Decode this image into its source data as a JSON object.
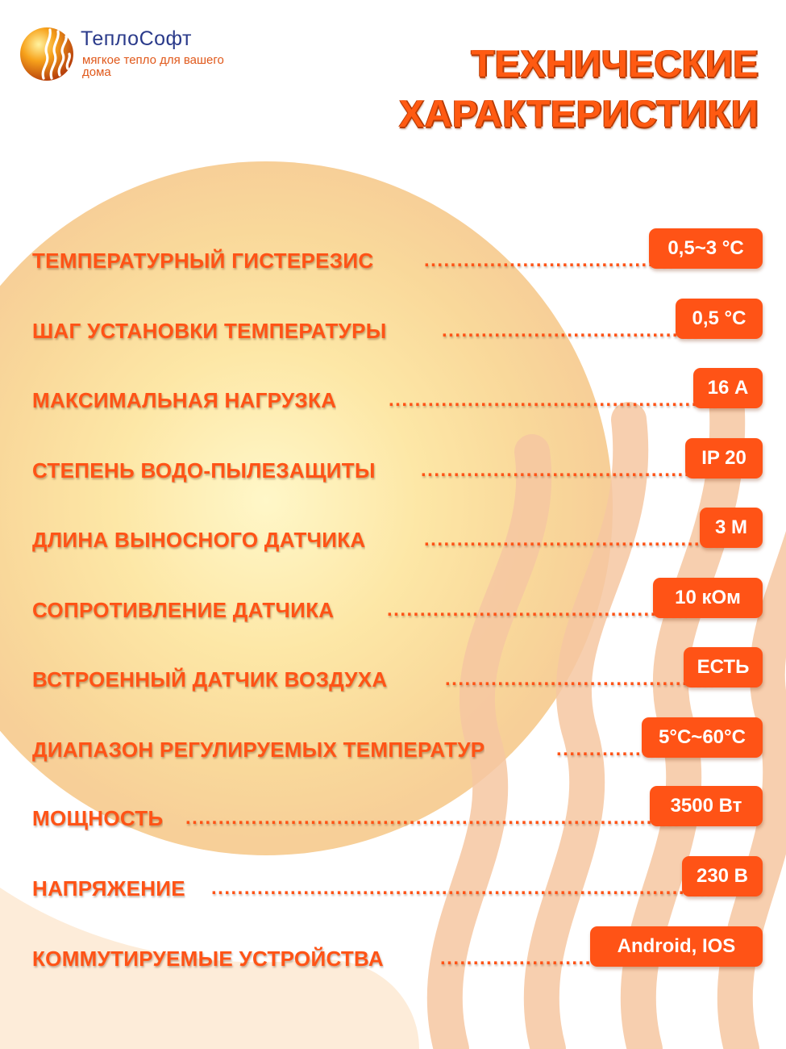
{
  "brand": {
    "name": "ТеплоСофт",
    "tagline": "мягкое тепло для вашего дома",
    "logo_icon": "sun-waves-logo"
  },
  "title": "ТЕХНИЧЕСКИЕ\nХАРАКТЕРИСТИКИ",
  "colors": {
    "accent": "#ff5316",
    "title_shadow": "#b53a05",
    "brand_blue": "#2a3a8a",
    "background_glow": "#fbd77a"
  },
  "specs": [
    {
      "label": "ТЕМПЕРАТУРНЫЙ ГИСТЕРЕЗИС",
      "value": "0,5~3 °С"
    },
    {
      "label": "ШАГ УСТАНОВКИ ТЕМПЕРАТУРЫ",
      "value": "0,5 °С"
    },
    {
      "label": "МАКСИМАЛЬНАЯ НАГРУЗКА",
      "value": "16 А"
    },
    {
      "label": "СТЕПЕНЬ ВОДО-ПЫЛЕЗАЩИТЫ",
      "value": "IP 20"
    },
    {
      "label": "ДЛИНА ВЫНОСНОГО ДАТЧИКА",
      "value": "3 М"
    },
    {
      "label": "СОПРОТИВЛЕНИЕ ДАТЧИКА",
      "value": "10 кОм"
    },
    {
      "label": "ВСТРОЕННЫЙ ДАТЧИК ВОЗДУХА",
      "value": "ЕСТЬ"
    },
    {
      "label": "ДИАПАЗОН РЕГУЛИРУЕМЫХ ТЕМПЕРАТУР",
      "value": "5°С~60°С"
    },
    {
      "label": "МОЩНОСТЬ",
      "value": "3500 Вт"
    },
    {
      "label": "НАПРЯЖЕНИЕ",
      "value": "230 В"
    },
    {
      "label": "КОММУТИРУЕМЫЕ УСТРОЙСТВА",
      "value": "Android, IOS"
    }
  ]
}
